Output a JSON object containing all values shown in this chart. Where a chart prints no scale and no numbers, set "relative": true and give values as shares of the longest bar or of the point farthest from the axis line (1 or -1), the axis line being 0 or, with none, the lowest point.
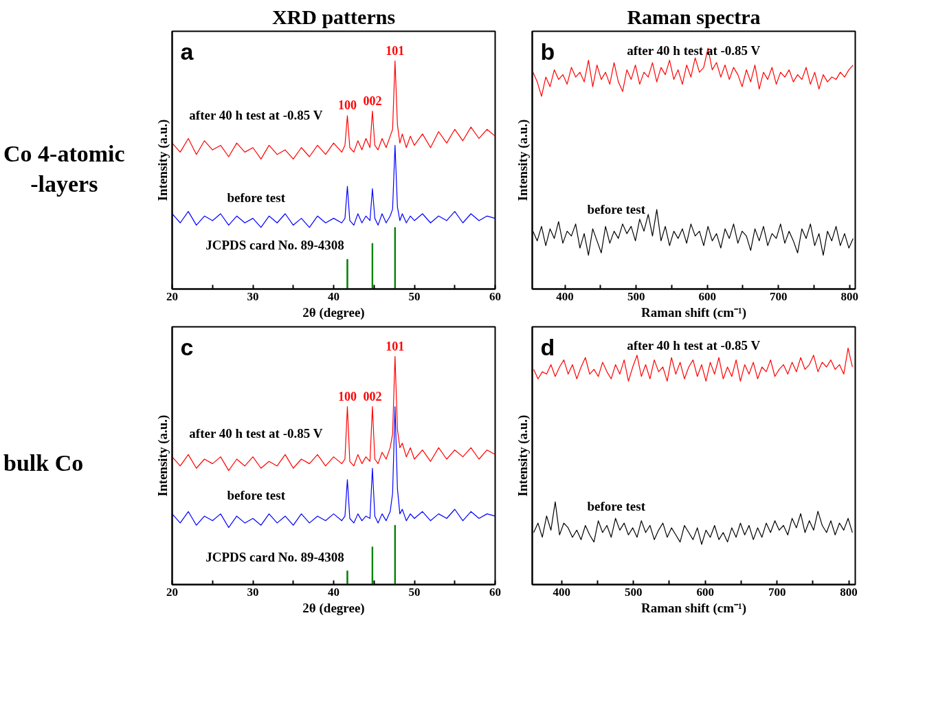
{
  "chart_data": [
    {
      "type": "line",
      "title": "XRD patterns",
      "subtitle": "Co 4-atomic\n-layers",
      "xlabel": "2θ (degree)",
      "ylabel": "Intensity (a.u.)",
      "relative": true,
      "tick_labels": "x",
      "xlim": [
        20,
        60
      ],
      "xticks": [
        20,
        {
          "value": 25,
          "label": null
        },
        30,
        {
          "value": 35,
          "label": null
        },
        40,
        {
          "value": 45,
          "label": null
        },
        50,
        {
          "value": 55,
          "label": null
        },
        60
      ],
      "x": [
        20,
        21,
        22,
        23,
        24,
        25,
        26,
        27,
        28,
        29,
        30,
        31,
        32,
        33,
        34,
        35,
        36,
        37,
        38,
        39,
        40,
        41,
        41.4,
        41.7,
        42,
        42.5,
        43,
        43.5,
        44,
        44.5,
        44.8,
        45.1,
        45.5,
        46,
        46.5,
        47,
        47.3,
        47.6,
        47.9,
        48.2,
        48.5,
        49,
        49.5,
        50,
        51,
        52,
        53,
        54,
        55,
        56,
        57,
        58,
        59,
        60
      ],
      "series": [
        {
          "name": "after 40 h test at -0.85 V",
          "color": "#ff0000",
          "values": [
            0.64,
            0.6,
            0.66,
            0.59,
            0.65,
            0.61,
            0.63,
            0.58,
            0.64,
            0.6,
            0.62,
            0.57,
            0.63,
            0.59,
            0.61,
            0.57,
            0.62,
            0.58,
            0.63,
            0.59,
            0.64,
            0.6,
            0.63,
            0.76,
            0.62,
            0.6,
            0.65,
            0.61,
            0.66,
            0.62,
            0.78,
            0.63,
            0.61,
            0.66,
            0.62,
            0.67,
            0.7,
            1,
            0.72,
            0.64,
            0.68,
            0.62,
            0.67,
            0.63,
            0.68,
            0.62,
            0.69,
            0.64,
            0.7,
            0.65,
            0.71,
            0.66,
            0.7,
            0.67
          ]
        },
        {
          "name": "before test",
          "color": "#0000ff",
          "values": [
            0.33,
            0.29,
            0.34,
            0.28,
            0.32,
            0.3,
            0.33,
            0.28,
            0.32,
            0.29,
            0.31,
            0.27,
            0.32,
            0.29,
            0.33,
            0.28,
            0.31,
            0.27,
            0.32,
            0.29,
            0.31,
            0.29,
            0.31,
            0.45,
            0.3,
            0.28,
            0.33,
            0.29,
            0.32,
            0.3,
            0.44,
            0.31,
            0.28,
            0.33,
            0.29,
            0.32,
            0.35,
            0.63,
            0.36,
            0.3,
            0.33,
            0.29,
            0.32,
            0.3,
            0.33,
            0.29,
            0.32,
            0.3,
            0.34,
            0.29,
            0.33,
            0.3,
            0.32,
            0.31
          ]
        },
        {
          "name": "JCPDS card No. 89-4308",
          "type": "bar",
          "color": "#008000",
          "x": [
            41.7,
            44.8,
            47.6
          ],
          "values": [
            0.13,
            0.2,
            0.27
          ]
        }
      ],
      "annotations": [
        "a",
        {
          "text": "100",
          "x": 41.7,
          "y": 0.76
        },
        {
          "text": "002",
          "x": 44.8,
          "y": 0.78
        },
        {
          "text": "101",
          "x": 47.6,
          "y": 1
        }
      ]
    },
    {
      "type": "line",
      "title": "Raman spectra",
      "xlabel": "Raman shift (cm⁻¹)",
      "ylabel": "Intensity (a.u.)",
      "relative": true,
      "tick_labels": "x",
      "xlim": [
        354,
        808
      ],
      "xticks": [
        400,
        {
          "value": 450,
          "label": null
        },
        500,
        {
          "value": 550,
          "label": null
        },
        600,
        {
          "value": 650,
          "label": null
        },
        700,
        {
          "value": 750,
          "label": null
        },
        800
      ],
      "x": [
        355,
        361,
        367,
        373,
        379,
        385,
        391,
        397,
        403,
        409,
        415,
        421,
        427,
        433,
        439,
        445,
        451,
        457,
        463,
        469,
        475,
        481,
        487,
        493,
        499,
        505,
        511,
        517,
        523,
        529,
        535,
        541,
        547,
        553,
        559,
        565,
        571,
        577,
        583,
        589,
        595,
        601,
        607,
        613,
        619,
        625,
        631,
        637,
        643,
        649,
        655,
        661,
        667,
        673,
        679,
        685,
        691,
        697,
        703,
        709,
        715,
        721,
        727,
        733,
        739,
        745,
        751,
        757,
        763,
        769,
        775,
        781,
        787,
        793,
        799,
        805
      ],
      "series": [
        {
          "name": "after 40 h test at -0.85 V",
          "color": "#ff0000",
          "values": [
            0.9,
            0.86,
            0.8,
            0.88,
            0.84,
            0.91,
            0.87,
            0.89,
            0.85,
            0.92,
            0.88,
            0.9,
            0.86,
            0.95,
            0.84,
            0.93,
            0.87,
            0.9,
            0.85,
            0.94,
            0.86,
            0.82,
            0.91,
            0.87,
            0.93,
            0.85,
            0.9,
            0.88,
            0.94,
            0.86,
            0.92,
            0.89,
            0.95,
            0.87,
            0.91,
            0.85,
            0.93,
            0.88,
            0.96,
            0.9,
            0.92,
            1.0,
            0.91,
            0.94,
            0.88,
            0.93,
            0.87,
            0.92,
            0.89,
            0.84,
            0.91,
            0.86,
            0.93,
            0.83,
            0.9,
            0.87,
            0.92,
            0.85,
            0.9,
            0.88,
            0.91,
            0.86,
            0.89,
            0.87,
            0.92,
            0.85,
            0.9,
            0.83,
            0.89,
            0.86,
            0.88,
            0.87,
            0.9,
            0.88,
            0.91,
            0.93
          ]
        },
        {
          "name": "before test",
          "color": "#000000",
          "values": [
            0.24,
            0.2,
            0.26,
            0.18,
            0.25,
            0.21,
            0.28,
            0.19,
            0.24,
            0.22,
            0.27,
            0.17,
            0.23,
            0.14,
            0.25,
            0.2,
            0.15,
            0.26,
            0.19,
            0.24,
            0.21,
            0.27,
            0.23,
            0.26,
            0.2,
            0.29,
            0.24,
            0.31,
            0.22,
            0.33,
            0.2,
            0.26,
            0.18,
            0.24,
            0.21,
            0.25,
            0.19,
            0.27,
            0.22,
            0.24,
            0.18,
            0.26,
            0.2,
            0.23,
            0.17,
            0.25,
            0.21,
            0.27,
            0.19,
            0.24,
            0.22,
            0.16,
            0.25,
            0.2,
            0.26,
            0.18,
            0.23,
            0.21,
            0.27,
            0.19,
            0.24,
            0.2,
            0.15,
            0.25,
            0.21,
            0.27,
            0.18,
            0.23,
            0.14,
            0.24,
            0.2,
            0.26,
            0.18,
            0.23,
            0.17,
            0.21
          ]
        }
      ],
      "annotations": [
        "b"
      ]
    },
    {
      "type": "line",
      "subtitle": "bulk Co",
      "xlabel": "2θ (degree)",
      "ylabel": "Intensity (a.u.)",
      "relative": true,
      "tick_labels": "x",
      "xlim": [
        20,
        60
      ],
      "xticks": [
        20,
        {
          "value": 25,
          "label": null
        },
        30,
        {
          "value": 35,
          "label": null
        },
        40,
        {
          "value": 45,
          "label": null
        },
        50,
        {
          "value": 55,
          "label": null
        },
        60
      ],
      "x": [
        20,
        21,
        22,
        23,
        24,
        25,
        26,
        27,
        28,
        29,
        30,
        31,
        32,
        33,
        34,
        35,
        36,
        37,
        38,
        39,
        40,
        41,
        41.4,
        41.7,
        42,
        42.5,
        43,
        43.5,
        44,
        44.5,
        44.8,
        45.1,
        45.5,
        46,
        46.5,
        47,
        47.3,
        47.6,
        47.9,
        48.2,
        48.5,
        49,
        49.5,
        50,
        51,
        52,
        53,
        54,
        55,
        56,
        57,
        58,
        59,
        60
      ],
      "series": [
        {
          "name": "after 40 h test at -0.85 V",
          "color": "#ff0000",
          "values": [
            0.56,
            0.52,
            0.57,
            0.51,
            0.55,
            0.53,
            0.56,
            0.5,
            0.55,
            0.52,
            0.56,
            0.51,
            0.54,
            0.52,
            0.57,
            0.51,
            0.55,
            0.53,
            0.57,
            0.52,
            0.56,
            0.53,
            0.55,
            0.78,
            0.54,
            0.52,
            0.57,
            0.53,
            0.56,
            0.54,
            0.78,
            0.55,
            0.53,
            0.58,
            0.55,
            0.6,
            0.66,
            1,
            0.68,
            0.6,
            0.62,
            0.56,
            0.6,
            0.55,
            0.59,
            0.54,
            0.6,
            0.55,
            0.59,
            0.56,
            0.6,
            0.55,
            0.59,
            0.57
          ]
        },
        {
          "name": "before test",
          "color": "#0000ff",
          "values": [
            0.31,
            0.27,
            0.32,
            0.26,
            0.3,
            0.28,
            0.31,
            0.25,
            0.3,
            0.27,
            0.29,
            0.26,
            0.31,
            0.27,
            0.3,
            0.26,
            0.31,
            0.27,
            0.3,
            0.28,
            0.31,
            0.28,
            0.3,
            0.46,
            0.29,
            0.27,
            0.31,
            0.28,
            0.3,
            0.29,
            0.51,
            0.3,
            0.27,
            0.31,
            0.28,
            0.32,
            0.4,
            0.78,
            0.42,
            0.31,
            0.33,
            0.28,
            0.31,
            0.29,
            0.32,
            0.28,
            0.31,
            0.29,
            0.33,
            0.28,
            0.32,
            0.29,
            0.31,
            0.3
          ]
        },
        {
          "name": "JCPDS card No. 89-4308",
          "type": "bar",
          "color": "#008000",
          "x": [
            41.7,
            44.8,
            47.6
          ],
          "values": [
            0.06,
            0.165,
            0.26
          ]
        }
      ],
      "annotations": [
        "c",
        {
          "text": "100",
          "x": 41.7,
          "y": 0.78
        },
        {
          "text": "002",
          "x": 44.8,
          "y": 0.78
        },
        {
          "text": "101",
          "x": 47.6,
          "y": 1
        }
      ]
    },
    {
      "type": "line",
      "xlabel": "Raman shift (cm⁻¹)",
      "ylabel": "Intensity (a.u.)",
      "relative": true,
      "tick_labels": "x",
      "xlim": [
        359,
        809
      ],
      "xticks": [
        400,
        {
          "value": 450,
          "label": null
        },
        500,
        {
          "value": 550,
          "label": null
        },
        600,
        {
          "value": 650,
          "label": null
        },
        700,
        {
          "value": 750,
          "label": null
        },
        800
      ],
      "x": [
        361,
        367,
        373,
        379,
        385,
        391,
        397,
        403,
        409,
        415,
        421,
        427,
        433,
        439,
        445,
        451,
        457,
        463,
        469,
        475,
        481,
        487,
        493,
        499,
        505,
        511,
        517,
        523,
        529,
        535,
        541,
        547,
        553,
        559,
        565,
        571,
        577,
        583,
        589,
        595,
        601,
        607,
        613,
        619,
        625,
        631,
        637,
        643,
        649,
        655,
        661,
        667,
        673,
        679,
        685,
        691,
        697,
        703,
        709,
        715,
        721,
        727,
        733,
        739,
        745,
        751,
        757,
        763,
        769,
        775,
        781,
        787,
        793,
        799,
        805
      ],
      "series": [
        {
          "name": "after 40 h test at -0.85 V",
          "color": "#ff0000",
          "values": [
            0.91,
            0.87,
            0.9,
            0.89,
            0.93,
            0.88,
            0.92,
            0.95,
            0.89,
            0.93,
            0.87,
            0.92,
            0.96,
            0.89,
            0.91,
            0.88,
            0.94,
            0.9,
            0.87,
            0.93,
            0.89,
            0.95,
            0.86,
            0.92,
            0.97,
            0.88,
            0.93,
            0.87,
            0.95,
            0.9,
            0.92,
            0.86,
            0.96,
            0.89,
            0.94,
            0.87,
            0.92,
            0.95,
            0.88,
            0.93,
            0.86,
            0.94,
            0.89,
            0.96,
            0.87,
            0.92,
            0.88,
            0.95,
            0.86,
            0.93,
            0.89,
            0.94,
            0.87,
            0.92,
            0.9,
            0.95,
            0.88,
            0.91,
            0.93,
            0.89,
            0.94,
            0.9,
            0.96,
            0.91,
            0.93,
            0.97,
            0.9,
            0.94,
            0.92,
            0.95,
            0.91,
            0.93,
            0.89,
            1.0,
            0.92
          ]
        },
        {
          "name": "before test",
          "color": "#000000",
          "values": [
            0.22,
            0.26,
            0.2,
            0.29,
            0.23,
            0.35,
            0.21,
            0.26,
            0.24,
            0.2,
            0.23,
            0.19,
            0.25,
            0.21,
            0.18,
            0.27,
            0.22,
            0.25,
            0.2,
            0.28,
            0.23,
            0.26,
            0.21,
            0.24,
            0.2,
            0.27,
            0.22,
            0.25,
            0.19,
            0.23,
            0.26,
            0.2,
            0.24,
            0.21,
            0.18,
            0.25,
            0.22,
            0.19,
            0.24,
            0.17,
            0.23,
            0.2,
            0.25,
            0.19,
            0.22,
            0.18,
            0.24,
            0.2,
            0.26,
            0.21,
            0.25,
            0.19,
            0.24,
            0.2,
            0.26,
            0.22,
            0.27,
            0.23,
            0.25,
            0.21,
            0.28,
            0.24,
            0.3,
            0.22,
            0.27,
            0.23,
            0.31,
            0.25,
            0.22,
            0.27,
            0.21,
            0.26,
            0.23,
            0.28,
            0.22
          ]
        }
      ],
      "annotations": [
        "d"
      ]
    }
  ]
}
